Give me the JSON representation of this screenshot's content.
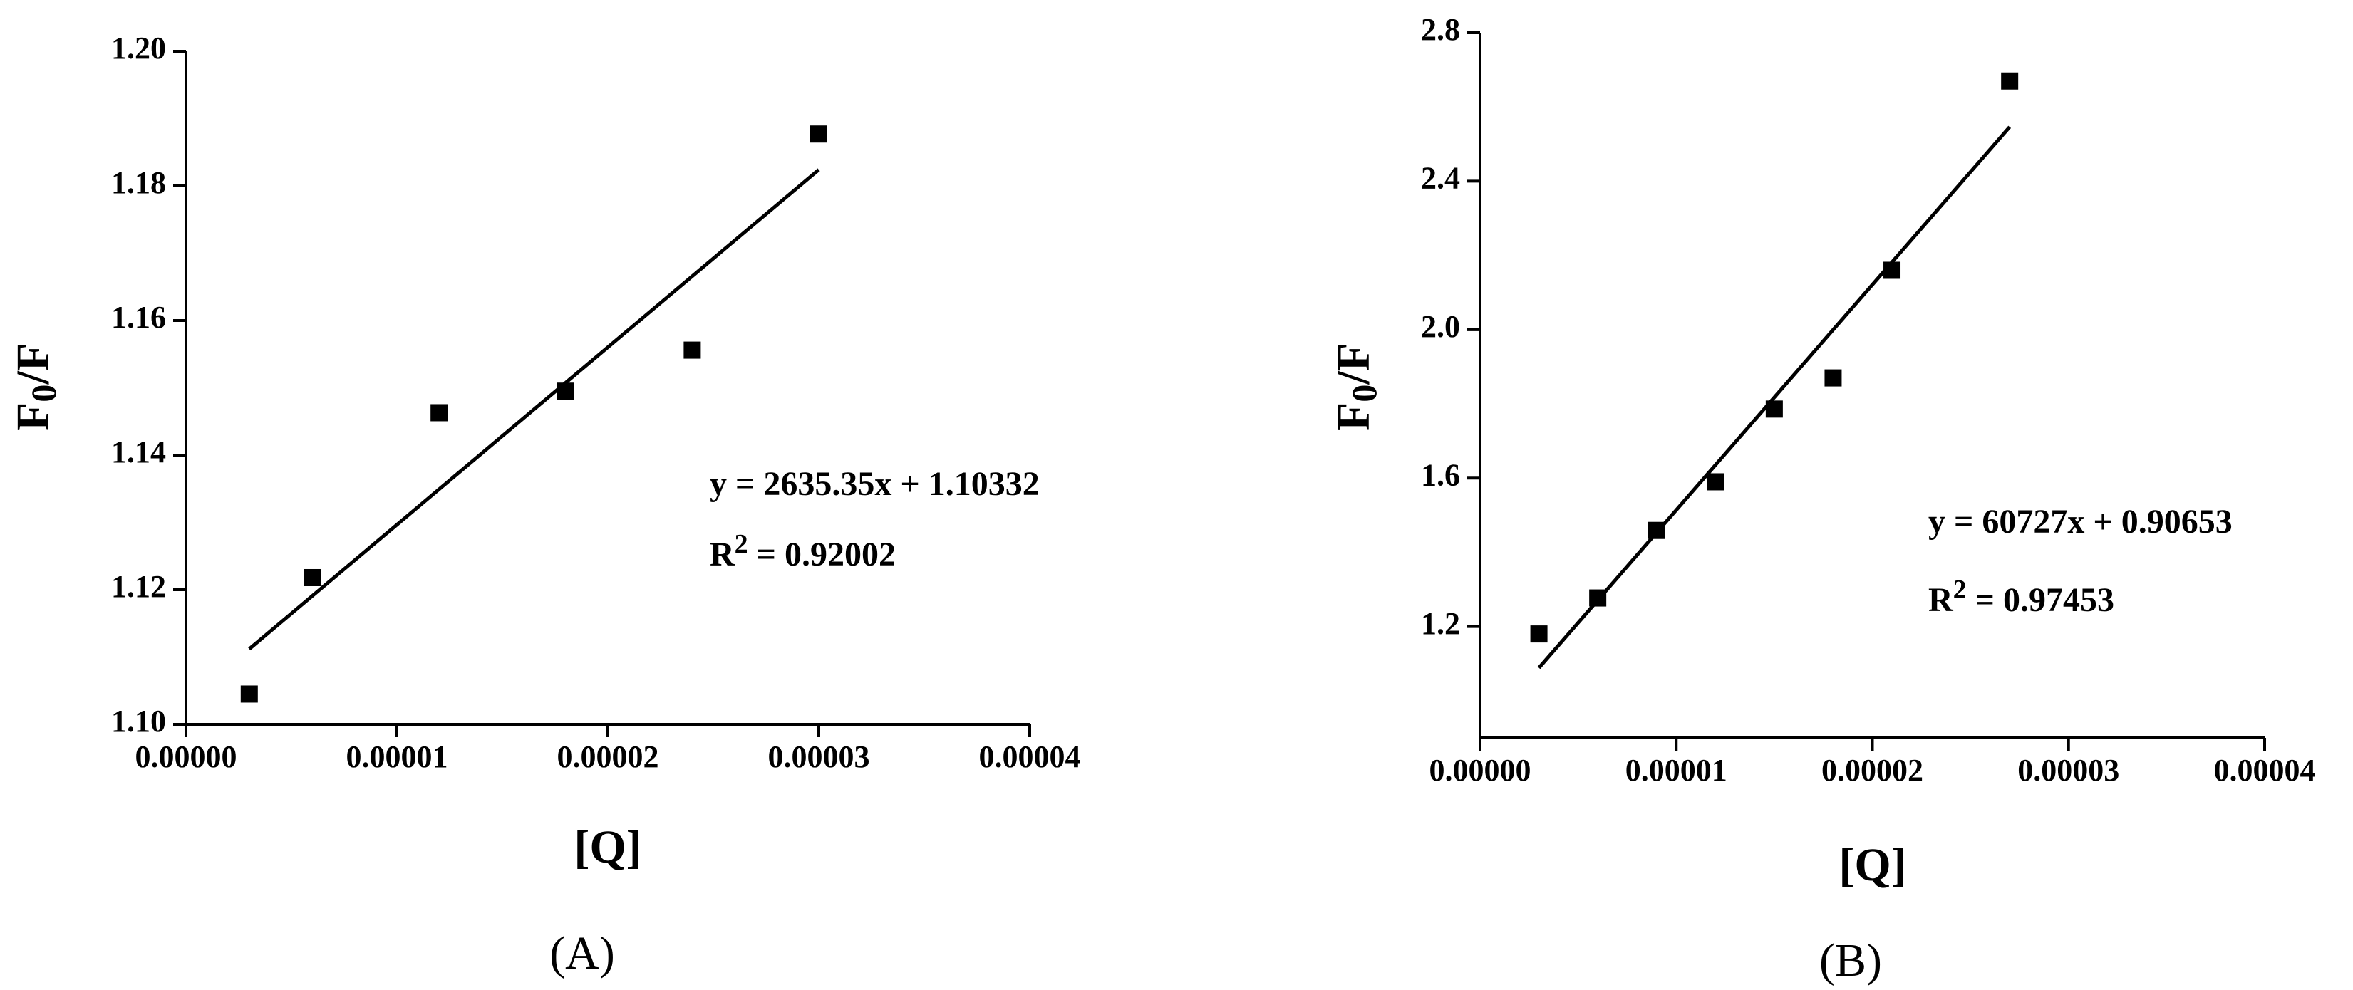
{
  "chart_data": [
    {
      "type": "scatter",
      "panel_label": "(A)",
      "x_label": "[Q]",
      "y_label": [
        "F",
        "0",
        "/F"
      ],
      "x": [
        3e-06,
        6e-06,
        1.2e-05,
        1.8e-05,
        2.4e-05,
        3e-05
      ],
      "values": [
        1.1045,
        1.1218,
        1.1463,
        1.1495,
        1.1556,
        1.1877
      ],
      "color": "#000000",
      "fit_line": {
        "x": [
          3e-06,
          3e-05
        ],
        "values": [
          1.1112,
          1.1824
        ]
      },
      "equation": "y = 2635.35x + 1.10332",
      "r_squared": [
        "R",
        "2",
        " = 0.92002"
      ],
      "xlim": [
        0,
        4e-05
      ],
      "xticks": [
        {
          "value": 0,
          "label": "0.00000"
        },
        {
          "value": 1e-05,
          "label": "0.00001"
        },
        {
          "value": 2e-05,
          "label": "0.00002"
        },
        {
          "value": 3e-05,
          "label": "0.00003"
        },
        {
          "value": 4e-05,
          "label": "0.00004"
        }
      ],
      "ylim": [
        1.1,
        1.2
      ],
      "yticks": [
        {
          "value": 1.1,
          "label": "1.10"
        },
        1.12,
        1.14,
        1.16,
        1.18,
        {
          "value": 1.2,
          "label": "1.20"
        }
      ]
    },
    {
      "type": "scatter",
      "panel_label": "(B)",
      "x_label": "[Q]",
      "y_label": [
        "F",
        "0",
        "/F"
      ],
      "x": [
        3e-06,
        6e-06,
        9e-06,
        1.2e-05,
        1.5e-05,
        1.8e-05,
        2.1e-05,
        2.7e-05
      ],
      "values": [
        1.18,
        1.277,
        1.459,
        1.59,
        1.786,
        1.87,
        2.16,
        2.67
      ],
      "color": "#000000",
      "fit_line": {
        "x": [
          3e-06,
          2.7e-05
        ],
        "values": [
          1.0887,
          2.5462
        ]
      },
      "equation": "y = 60727x + 0.90653",
      "r_squared": [
        "R",
        "2",
        " = 0.97453"
      ],
      "xlim": [
        0,
        4e-05
      ],
      "xticks": [
        {
          "value": 0,
          "label": "0.00000"
        },
        {
          "value": 1e-05,
          "label": "0.00001"
        },
        {
          "value": 2e-05,
          "label": "0.00002"
        },
        {
          "value": 3e-05,
          "label": "0.00003"
        },
        {
          "value": 4e-05,
          "label": "0.00004"
        }
      ],
      "ylim": [
        0.9,
        2.8
      ],
      "yticks": [
        1.2,
        1.6,
        {
          "value": 2.0,
          "label": "2.0"
        },
        2.4,
        2.8
      ]
    }
  ]
}
